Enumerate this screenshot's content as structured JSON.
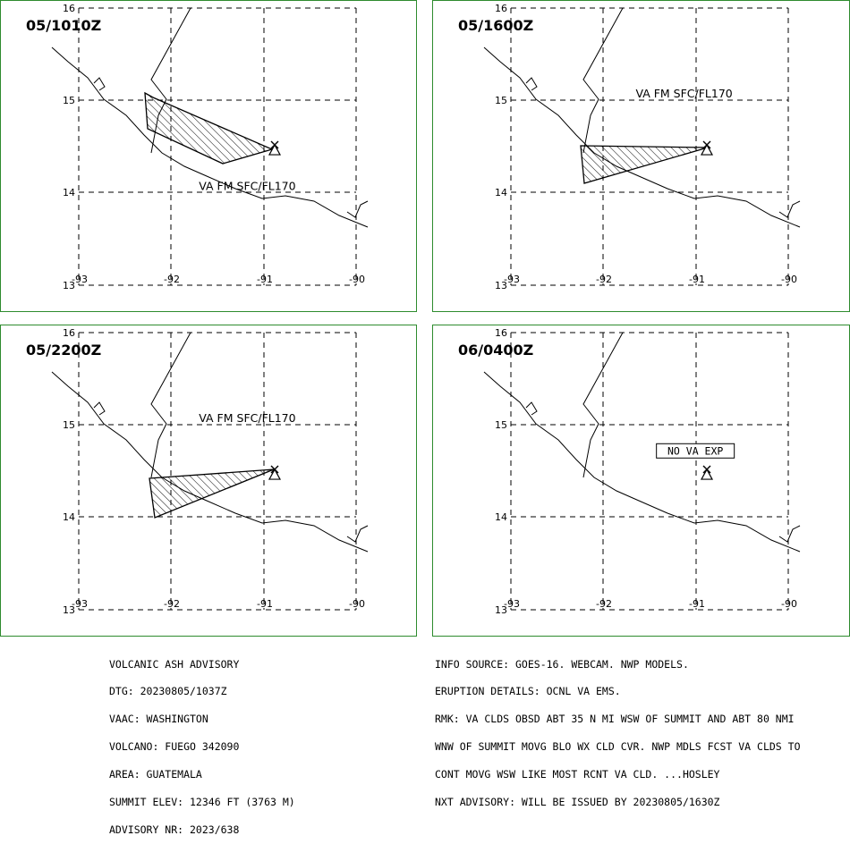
{
  "panels": [
    {
      "time": "05/1010Z",
      "label": "VA FM SFC/FL170",
      "ash": [
        [
          161,
          103
        ],
        [
          170,
          108
        ],
        [
          303,
          166
        ],
        [
          248,
          182
        ],
        [
          164,
          143
        ]
      ],
      "label_pos": [
        -91.7,
        14.03
      ],
      "no_va": ""
    },
    {
      "time": "05/1600Z",
      "label": "VA FM SFC/FL170",
      "ash": [
        [
          648,
          162
        ],
        [
          790,
          164
        ],
        [
          652,
          204
        ]
      ],
      "label_pos": [
        -91.65,
        15.03
      ],
      "no_va": ""
    },
    {
      "time": "05/2200Z",
      "label": "VA FM SFC/FL170",
      "ash": [
        [
          166,
          534
        ],
        [
          305,
          524
        ],
        [
          172,
          578
        ]
      ],
      "label_pos": [
        -91.7,
        15.03
      ],
      "no_va": ""
    },
    {
      "time": "06/0400Z",
      "label": "",
      "ash": [],
      "label_pos": null,
      "no_va": "NO VA EXP"
    }
  ],
  "axes": {
    "lat_labels": [
      "16",
      "15",
      "14",
      "13"
    ],
    "lon_labels": [
      "-93",
      "-92",
      "-91",
      "-90"
    ]
  },
  "volcano": {
    "name": "FUEGO",
    "lat": 14.47,
    "lon": -90.88
  },
  "colors": {
    "border": "#2e8b2e",
    "ink": "#000000"
  },
  "advisory_left": [
    "VOLCANIC ASH ADVISORY",
    "DTG: 20230805/1037Z",
    "VAAC: WASHINGTON",
    "VOLCANO: FUEGO 342090",
    "AREA: GUATEMALA",
    "SUMMIT ELEV: 12346 FT (3763 M)",
    "ADVISORY NR: 2023/638"
  ],
  "advisory_right": [
    "INFO SOURCE: GOES-16. WEBCAM. NWP MODELS.",
    "ERUPTION DETAILS: OCNL VA EMS.",
    "RMK: VA CLDS OBSD ABT 35 N MI WSW OF SUMMIT AND ABT 80 NMI",
    "WNW OF SUMMIT MOVG BLO WX CLD CVR. NWP MDLS FCST VA CLDS TO",
    "CONT MOVG WSW LIKE MOST RCNT VA CLD. ...HOSLEY",
    "NXT ADVISORY: WILL BE ISSUED BY 20230805/1630Z"
  ]
}
